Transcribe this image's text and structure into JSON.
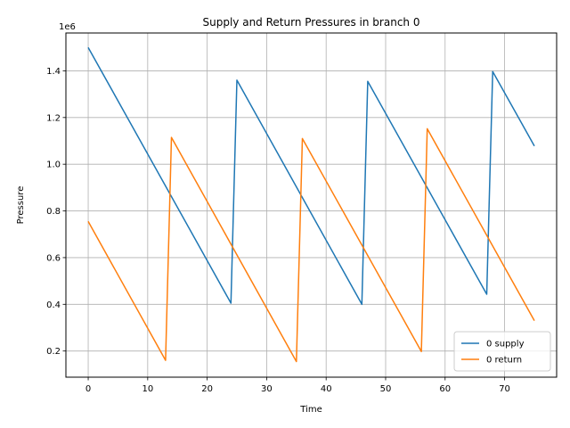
{
  "chart_data": {
    "type": "line",
    "title": "Supply and Return Pressures in branch 0",
    "xlabel": "Time",
    "ylabel": "Pressure",
    "y_offset_label": "1e6",
    "xlim": [
      -3.75,
      78.75
    ],
    "ylim": [
      0.088,
      1.562
    ],
    "y_scale_multiplier": 1000000,
    "x_ticks": [
      0,
      10,
      20,
      30,
      40,
      50,
      60,
      70
    ],
    "y_ticks": [
      0.2,
      0.4,
      0.6,
      0.8,
      1.0,
      1.2,
      1.4
    ],
    "x_tick_labels": [
      "0",
      "10",
      "20",
      "30",
      "40",
      "50",
      "60",
      "70"
    ],
    "y_tick_labels": [
      "0.2",
      "0.4",
      "0.6",
      "0.8",
      "1.0",
      "1.2",
      "1.4"
    ],
    "grid": true,
    "legend_position": "lower-right",
    "series": [
      {
        "name": "0 supply",
        "color": "#1f77b4",
        "x": [
          0,
          24,
          25,
          46,
          47,
          67,
          68,
          75
        ],
        "y": [
          1.5,
          0.405,
          1.36,
          0.4,
          1.355,
          0.443,
          1.397,
          1.078
        ]
      },
      {
        "name": "0 return",
        "color": "#ff7f0e",
        "x": [
          0,
          13,
          14,
          35,
          36,
          56,
          57,
          75
        ],
        "y": [
          0.755,
          0.16,
          1.115,
          0.155,
          1.11,
          0.198,
          1.152,
          0.33
        ]
      }
    ]
  }
}
